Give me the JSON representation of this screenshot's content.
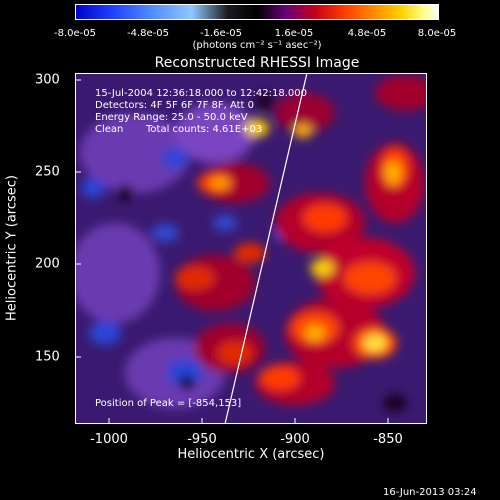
{
  "colorbar": {
    "ticks": [
      "-8.0e-05",
      "-4.8e-05",
      "-1.6e-05",
      "1.6e-05",
      "4.8e-05",
      "8.0e-05"
    ],
    "units": "(photons cm⁻² s⁻¹ asec⁻²)"
  },
  "title": "Reconstructed RHESSI Image",
  "info": {
    "time": "15-Jul-2004 12:36:18.000 to 12:42:18.000",
    "detectors": "Detectors: 4F 5F 6F 7F 8F, Att 0",
    "energy": "Energy Range: 25.0 - 50.0 keV",
    "clean": "Clean",
    "counts": "Total counts: 4.61E+03",
    "peak": "Position of Peak = [-854,153]"
  },
  "axes": {
    "xlabel": "Heliocentric X (arcsec)",
    "ylabel": "Heliocentric Y (arcsec)",
    "xticks": [
      "-1000",
      "-950",
      "-900",
      "-850"
    ],
    "yticks": [
      "300",
      "250",
      "200",
      "150"
    ]
  },
  "timestamp": "16-Jun-2013 03:24"
}
